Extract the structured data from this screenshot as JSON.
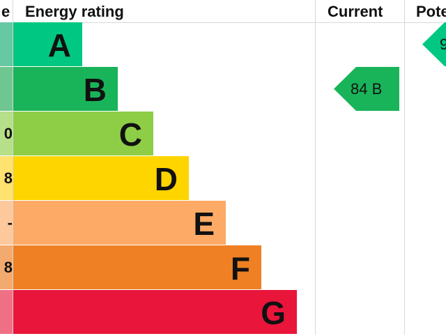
{
  "headers": {
    "score": "e",
    "rating": "Energy rating",
    "current": "Current",
    "potential": "Pote"
  },
  "chart_data": {
    "type": "bar",
    "title": "",
    "categories": [
      "A",
      "B",
      "C",
      "D",
      "E",
      "F",
      "G"
    ],
    "colors": [
      "#00c781",
      "#19b459",
      "#8dce46",
      "#ffd500",
      "#fcaa65",
      "#ef8023",
      "#e9153b"
    ],
    "score_colors": [
      "#66c9a4",
      "#70c690",
      "#b6df8a",
      "#ffe270",
      "#fdc89c",
      "#f3aa6e",
      "#ef7085"
    ],
    "score_fragments": [
      "",
      "",
      "0",
      "8",
      "-",
      "8",
      ""
    ],
    "current": {
      "label": "84 B",
      "band": "B",
      "color": "#19b459"
    },
    "potential": {
      "label": "9",
      "band": "A",
      "color": "#00c781"
    }
  }
}
